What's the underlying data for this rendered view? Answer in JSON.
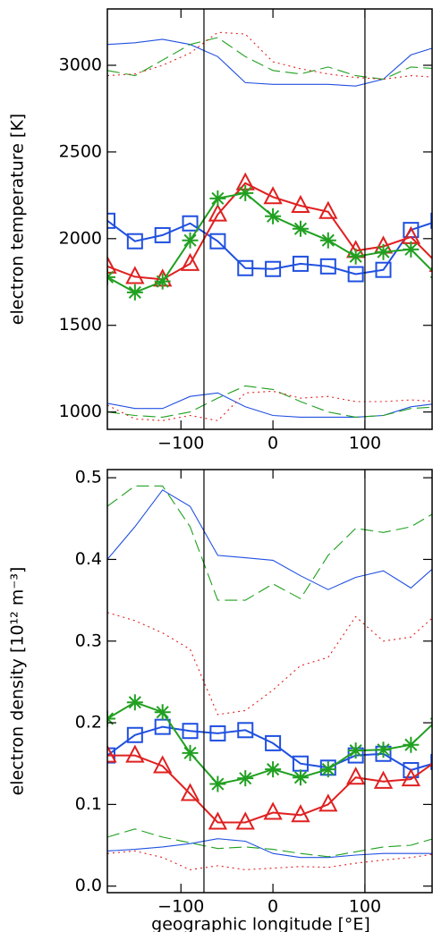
{
  "chart_data": [
    {
      "type": "line",
      "ylabel": "electron temperature [K]",
      "x": [
        -180,
        -150,
        -120,
        -90,
        -60,
        -30,
        0,
        30,
        60,
        90,
        120,
        150,
        180
      ],
      "xlim": [
        -180,
        173
      ],
      "ylim": [
        900,
        3325
      ],
      "xticks": [
        {
          "value": -100,
          "label": "−100"
        },
        0,
        100
      ],
      "yticks": [
        1000,
        1500,
        2000,
        2500,
        3000
      ],
      "vlines": [
        -75,
        100
      ],
      "series": [
        {
          "color": "#2050e0",
          "style": "solid",
          "marker": "square",
          "values": [
            2103,
            1985,
            2020,
            2088,
            1985,
            1830,
            1825,
            1855,
            1840,
            1795,
            1820,
            2050,
            2103
          ]
        },
        {
          "color": "#e02020",
          "style": "solid",
          "marker": "triangle",
          "values": [
            1840,
            1780,
            1765,
            1855,
            2140,
            2320,
            2240,
            2190,
            2155,
            1930,
            1955,
            2010,
            1850
          ]
        },
        {
          "color": "#20a020",
          "style": "solid",
          "marker": "asterisk",
          "values": [
            1778,
            1690,
            1753,
            1990,
            2232,
            2263,
            2129,
            2057,
            1990,
            1897,
            1923,
            1938,
            1778
          ]
        },
        {
          "color": "#2050e0",
          "style": "solid",
          "marker": "none",
          "values": [
            3120,
            3130,
            3150,
            3120,
            3050,
            2900,
            2890,
            2890,
            2890,
            2880,
            2920,
            3060,
            3110
          ]
        },
        {
          "color": "#20a020",
          "style": "dashed",
          "marker": "none",
          "values": [
            2970,
            2940,
            3030,
            3120,
            3160,
            3050,
            2970,
            2950,
            2990,
            2940,
            2920,
            2990,
            2980
          ]
        },
        {
          "color": "#e02020",
          "style": "dotted",
          "marker": "none",
          "values": [
            2940,
            2950,
            3000,
            3070,
            3190,
            3180,
            3020,
            2980,
            2950,
            2930,
            2920,
            2940,
            2930
          ]
        },
        {
          "color": "#2050e0",
          "style": "solid",
          "marker": "none",
          "values": [
            1050,
            1020,
            1020,
            1090,
            1110,
            1030,
            980,
            970,
            970,
            970,
            980,
            1030,
            1050
          ]
        },
        {
          "color": "#20a020",
          "style": "dashed",
          "marker": "none",
          "values": [
            1000,
            980,
            970,
            1000,
            1080,
            1150,
            1130,
            1060,
            1000,
            970,
            980,
            1020,
            1030
          ]
        },
        {
          "color": "#e02020",
          "style": "dotted",
          "marker": "none",
          "values": [
            1040,
            960,
            950,
            980,
            950,
            1110,
            1120,
            1080,
            1090,
            1060,
            1060,
            1070,
            1060
          ]
        }
      ]
    },
    {
      "type": "line",
      "ylabel": "electron density [10¹² m⁻³]",
      "xlabel": "geographic longitude [°E]",
      "x": [
        -180,
        -150,
        -120,
        -90,
        -60,
        -30,
        0,
        30,
        60,
        90,
        120,
        150,
        180
      ],
      "xlim": [
        -180,
        173
      ],
      "ylim": [
        -0.008,
        0.51
      ],
      "xticks": [
        {
          "value": -100,
          "label": "−100"
        },
        0,
        100
      ],
      "yticks": [
        {
          "value": 0,
          "label": "0.0"
        },
        0.1,
        0.2,
        0.3,
        0.4,
        0.5
      ],
      "vlines": [
        -75,
        100
      ],
      "series": [
        {
          "color": "#2050e0",
          "style": "solid",
          "marker": "square",
          "values": [
            0.16,
            0.185,
            0.195,
            0.19,
            0.187,
            0.191,
            0.175,
            0.15,
            0.145,
            0.16,
            0.162,
            0.142,
            0.152
          ]
        },
        {
          "color": "#e02020",
          "style": "solid",
          "marker": "triangle",
          "values": [
            0.16,
            0.16,
            0.147,
            0.113,
            0.078,
            0.078,
            0.09,
            0.087,
            0.1,
            0.133,
            0.128,
            0.131,
            0.155
          ]
        },
        {
          "color": "#20a020",
          "style": "solid",
          "marker": "asterisk",
          "values": [
            0.205,
            0.225,
            0.213,
            0.163,
            0.125,
            0.132,
            0.143,
            0.133,
            0.143,
            0.166,
            0.167,
            0.173,
            0.205
          ]
        },
        {
          "color": "#2050e0",
          "style": "solid",
          "marker": "none",
          "values": [
            0.4,
            0.44,
            0.485,
            0.465,
            0.405,
            0.402,
            0.399,
            0.38,
            0.363,
            0.378,
            0.386,
            0.365,
            0.395
          ]
        },
        {
          "color": "#20a020",
          "style": "dashed",
          "marker": "none",
          "values": [
            0.465,
            0.49,
            0.49,
            0.44,
            0.35,
            0.35,
            0.37,
            0.352,
            0.405,
            0.438,
            0.433,
            0.44,
            0.46
          ]
        },
        {
          "color": "#e02020",
          "style": "dotted",
          "marker": "none",
          "values": [
            0.335,
            0.325,
            0.31,
            0.29,
            0.21,
            0.215,
            0.24,
            0.27,
            0.28,
            0.33,
            0.3,
            0.305,
            0.335
          ]
        },
        {
          "color": "#2050e0",
          "style": "solid",
          "marker": "none",
          "values": [
            0.043,
            0.045,
            0.048,
            0.052,
            0.058,
            0.055,
            0.04,
            0.035,
            0.035,
            0.038,
            0.04,
            0.04,
            0.04
          ]
        },
        {
          "color": "#20a020",
          "style": "dashed",
          "marker": "none",
          "values": [
            0.06,
            0.07,
            0.06,
            0.053,
            0.046,
            0.048,
            0.045,
            0.04,
            0.036,
            0.042,
            0.048,
            0.05,
            0.06
          ]
        },
        {
          "color": "#e02020",
          "style": "dotted",
          "marker": "none",
          "values": [
            0.04,
            0.043,
            0.035,
            0.02,
            0.025,
            0.02,
            0.022,
            0.024,
            0.023,
            0.028,
            0.032,
            0.035,
            0.04
          ]
        }
      ]
    }
  ]
}
